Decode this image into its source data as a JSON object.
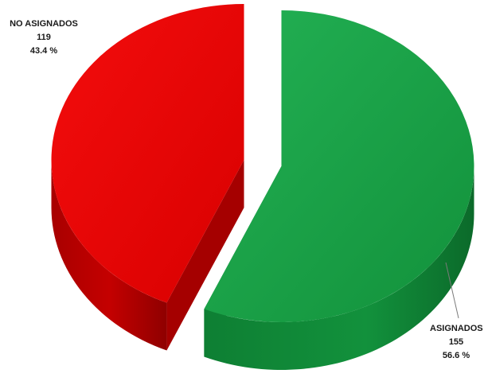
{
  "chart_data": {
    "type": "pie",
    "title": "",
    "slices": [
      {
        "label": "NO ASIGNADOS",
        "value": 119,
        "percent": "43.4 %",
        "color": "#e30000"
      },
      {
        "label": "ASIGNADOS",
        "value": 155,
        "percent": "56.6 %",
        "color": "#17a146"
      }
    ],
    "legend": "none",
    "style": "3d-exploded"
  }
}
